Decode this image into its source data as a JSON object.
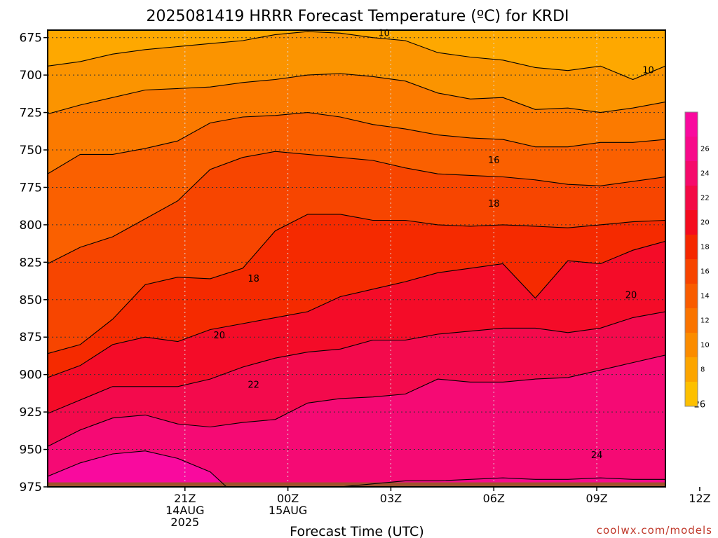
{
  "chart_data": {
    "type": "contour",
    "title": "2025081419 HRRR Forecast Temperature (ºC) for KRDI",
    "xlabel": "Forecast Time (UTC)",
    "ylabel": "",
    "credit": "coolwx.com/models",
    "x_hours": [
      -4,
      14
    ],
    "y_pressure": [
      975,
      670
    ],
    "y_ticks": [
      675,
      700,
      725,
      750,
      775,
      800,
      825,
      850,
      875,
      900,
      925,
      950,
      975
    ],
    "x_ticks": [
      {
        "h": 0,
        "line1": "21Z",
        "line2": "14AUG",
        "line3": "2025"
      },
      {
        "h": 3,
        "line1": "00Z",
        "line2": "15AUG",
        "line3": ""
      },
      {
        "h": 6,
        "line1": "03Z",
        "line2": "",
        "line3": ""
      },
      {
        "h": 9,
        "line1": "06Z",
        "line2": "",
        "line3": ""
      },
      {
        "h": 12,
        "line1": "09Z",
        "line2": "",
        "line3": ""
      },
      {
        "h": 15,
        "line1": "12Z",
        "line2": "",
        "line3": ""
      }
    ],
    "colorbar": {
      "labels": [
        8,
        10,
        12,
        14,
        16,
        18,
        20,
        22,
        24,
        26
      ],
      "colors": [
        "#fdc000",
        "#fca500",
        "#fb8c00",
        "#fa7400",
        "#f95c00",
        "#f74400",
        "#f52800",
        "#f40c1e",
        "#f30a46",
        "#f50a6b",
        "#f70a8a",
        "#f90a9e"
      ]
    },
    "contours": [
      {
        "level": 10,
        "p": [
          694,
          691,
          686,
          683,
          681,
          679,
          677,
          673,
          671,
          672,
          675,
          677,
          685,
          688,
          690,
          695,
          697,
          694,
          703,
          694
        ]
      },
      {
        "level": 12,
        "p": [
          726,
          720,
          715,
          710,
          709,
          708,
          705,
          703,
          700,
          699,
          701,
          704,
          712,
          716,
          715,
          723,
          722,
          725,
          722,
          718
        ]
      },
      {
        "level": 14,
        "p": [
          766,
          753,
          753,
          749,
          744,
          732,
          728,
          727,
          725,
          728,
          733,
          736,
          740,
          742,
          743,
          748,
          748,
          745,
          745,
          743
        ]
      },
      {
        "level": 16,
        "p": [
          826,
          815,
          808,
          796,
          784,
          763,
          755,
          751,
          753,
          755,
          757,
          762,
          766,
          767,
          768,
          770,
          773,
          774,
          771,
          768
        ]
      },
      {
        "level": 18,
        "p": [
          886,
          880,
          863,
          840,
          835,
          836,
          829,
          804,
          793,
          793,
          797,
          797,
          800,
          801,
          800,
          801,
          802,
          800,
          798,
          797
        ]
      },
      {
        "level": 20,
        "p": [
          902,
          894,
          880,
          875,
          878,
          870,
          866,
          862,
          858,
          848,
          843,
          838,
          832,
          829,
          826,
          849,
          824,
          826,
          817,
          811
        ]
      },
      {
        "level": 22,
        "p": [
          926,
          917,
          908,
          908,
          908,
          903,
          895,
          889,
          885,
          883,
          877,
          877,
          873,
          871,
          869,
          869,
          872,
          869,
          862,
          858
        ]
      },
      {
        "level": 24,
        "p": [
          948,
          937,
          929,
          927,
          933,
          935,
          932,
          930,
          919,
          916,
          915,
          913,
          903,
          905,
          905,
          903,
          902,
          897,
          892,
          887
        ]
      },
      {
        "level": 24,
        "p": [
          985,
          985,
          985,
          985,
          985,
          985,
          985,
          985,
          985,
          975,
          973,
          971,
          971,
          970,
          969,
          970,
          970,
          969,
          970,
          970
        ]
      },
      {
        "level": 26,
        "p": [
          968,
          959,
          953,
          951,
          956,
          965,
          985,
          985,
          985,
          985,
          985,
          985,
          985,
          985,
          985,
          985,
          985,
          985,
          985,
          985
        ]
      }
    ],
    "contour_labels": [
      {
        "text": "10",
        "h": 5.8,
        "p": 672
      },
      {
        "text": "10",
        "h": 13.5,
        "p": 697
      },
      {
        "text": "16",
        "h": 9.0,
        "p": 757
      },
      {
        "text": "18",
        "h": 9.0,
        "p": 786
      },
      {
        "text": "18",
        "h": 2.0,
        "p": 836
      },
      {
        "text": "20",
        "h": 13.0,
        "p": 847
      },
      {
        "text": "20",
        "h": 1.0,
        "p": 874
      },
      {
        "text": "22",
        "h": 2.0,
        "p": 907
      },
      {
        "text": "24",
        "h": 12.0,
        "p": 954
      },
      {
        "text": "26",
        "h": 15.0,
        "p": 920
      }
    ],
    "cell_26": {
      "h": [
        14.2,
        14.5,
        15.0,
        15.6,
        16.0,
        15.6,
        15.0,
        14.6
      ],
      "p": [
        925,
        920,
        917,
        919,
        925,
        933,
        937,
        932
      ]
    }
  }
}
